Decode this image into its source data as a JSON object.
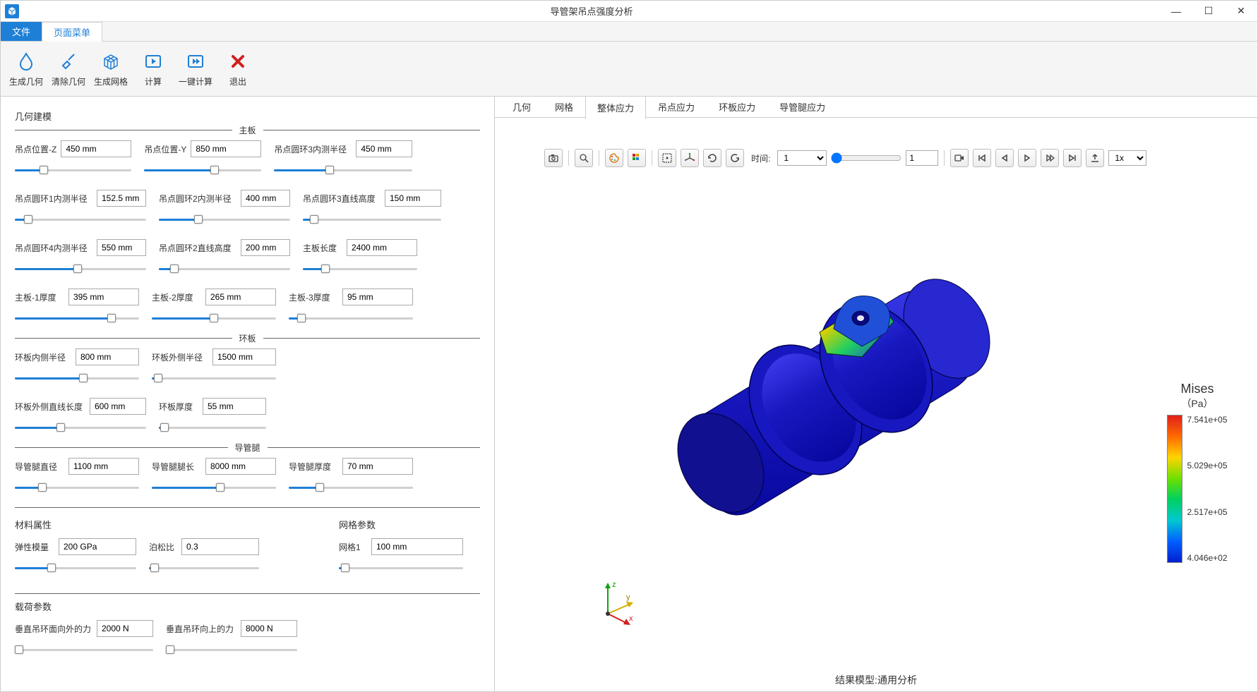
{
  "window": {
    "title": "导管架吊点强度分析"
  },
  "menutabs": {
    "file": "文件",
    "page": "页面菜单"
  },
  "ribbon": {
    "gen_geom": "生成几何",
    "clear_geom": "清除几何",
    "gen_mesh": "生成网格",
    "calc": "计算",
    "onekey_calc": "一键计算",
    "exit": "退出"
  },
  "left": {
    "geom_model": "几何建模",
    "group_main": "主板",
    "group_ring": "环板",
    "group_pipe": "导管腿",
    "material": "材料属性",
    "mesh_params": "网格参数",
    "load_params": "载荷参数",
    "fields": {
      "z": {
        "label": "吊点位置-Z",
        "value": "450 mm",
        "pct": 25
      },
      "y": {
        "label": "吊点位置-Y",
        "value": "850 mm",
        "pct": 60
      },
      "r3": {
        "label": "吊点圆环3内测半径",
        "value": "450 mm",
        "pct": 40
      },
      "r1": {
        "label": "吊点圆环1内测半径",
        "value": "152.5 mm",
        "pct": 10
      },
      "r2": {
        "label": "吊点圆环2内测半径",
        "value": "400 mm",
        "pct": 30
      },
      "h3": {
        "label": "吊点圆环3直线高度",
        "value": "150 mm",
        "pct": 8
      },
      "r4": {
        "label": "吊点圆环4内测半径",
        "value": "550 mm",
        "pct": 48
      },
      "h2": {
        "label": "吊点圆环2直线高度",
        "value": "200 mm",
        "pct": 12
      },
      "mainlen": {
        "label": "主板长度",
        "value": "2400 mm",
        "pct": 20
      },
      "t1": {
        "label": "主板-1厚度",
        "value": "395 mm",
        "pct": 78
      },
      "t2": {
        "label": "主板-2厚度",
        "value": "265 mm",
        "pct": 50
      },
      "t3": {
        "label": "主板-3厚度",
        "value": "95 mm",
        "pct": 10
      },
      "ring_in": {
        "label": "环板内侧半径",
        "value": "800 mm",
        "pct": 55
      },
      "ring_out": {
        "label": "环板外侧半径",
        "value": "1500 mm",
        "pct": 5
      },
      "ring_len": {
        "label": "环板外侧直线长度",
        "value": "600 mm",
        "pct": 35
      },
      "ring_t": {
        "label": "环板厚度",
        "value": "55 mm",
        "pct": 5
      },
      "pipe_d": {
        "label": "导管腿直径",
        "value": "1100 mm",
        "pct": 22
      },
      "pipe_l": {
        "label": "导管腿腿长",
        "value": "8000 mm",
        "pct": 55
      },
      "pipe_t": {
        "label": "导管腿厚度",
        "value": "70 mm",
        "pct": 25
      },
      "E": {
        "label": "弹性模量",
        "value": "200 GPa",
        "pct": 30
      },
      "nu": {
        "label": "泊松比",
        "value": "0.3",
        "pct": 5
      },
      "mesh1": {
        "label": "网格1",
        "value": "100 mm",
        "pct": 5
      },
      "f_out": {
        "label": "垂直吊环面向外的力",
        "value": "2000 N",
        "pct": 3
      },
      "f_up": {
        "label": "垂直吊环向上的力",
        "value": "8000 N",
        "pct": 3
      }
    }
  },
  "result_tabs": {
    "geom": "几何",
    "mesh": "网格",
    "total": "整体应力",
    "lift": "吊点应力",
    "ring": "环板应力",
    "pipe": "导管腿应力"
  },
  "viewer": {
    "time_label": "时间:",
    "time_select": "1",
    "frame": "1",
    "speed": "1x",
    "footer": "结果模型:通用分析"
  },
  "mises": {
    "title": "Mises",
    "unit": "（Pa）",
    "ticks": [
      "7.541e+05",
      "5.029e+05",
      "2.517e+05",
      "4.046e+02"
    ]
  },
  "colors": {
    "accent": "#1e7fd6",
    "model_body": "#1818c0",
    "model_shadow": "#0a0a80"
  }
}
